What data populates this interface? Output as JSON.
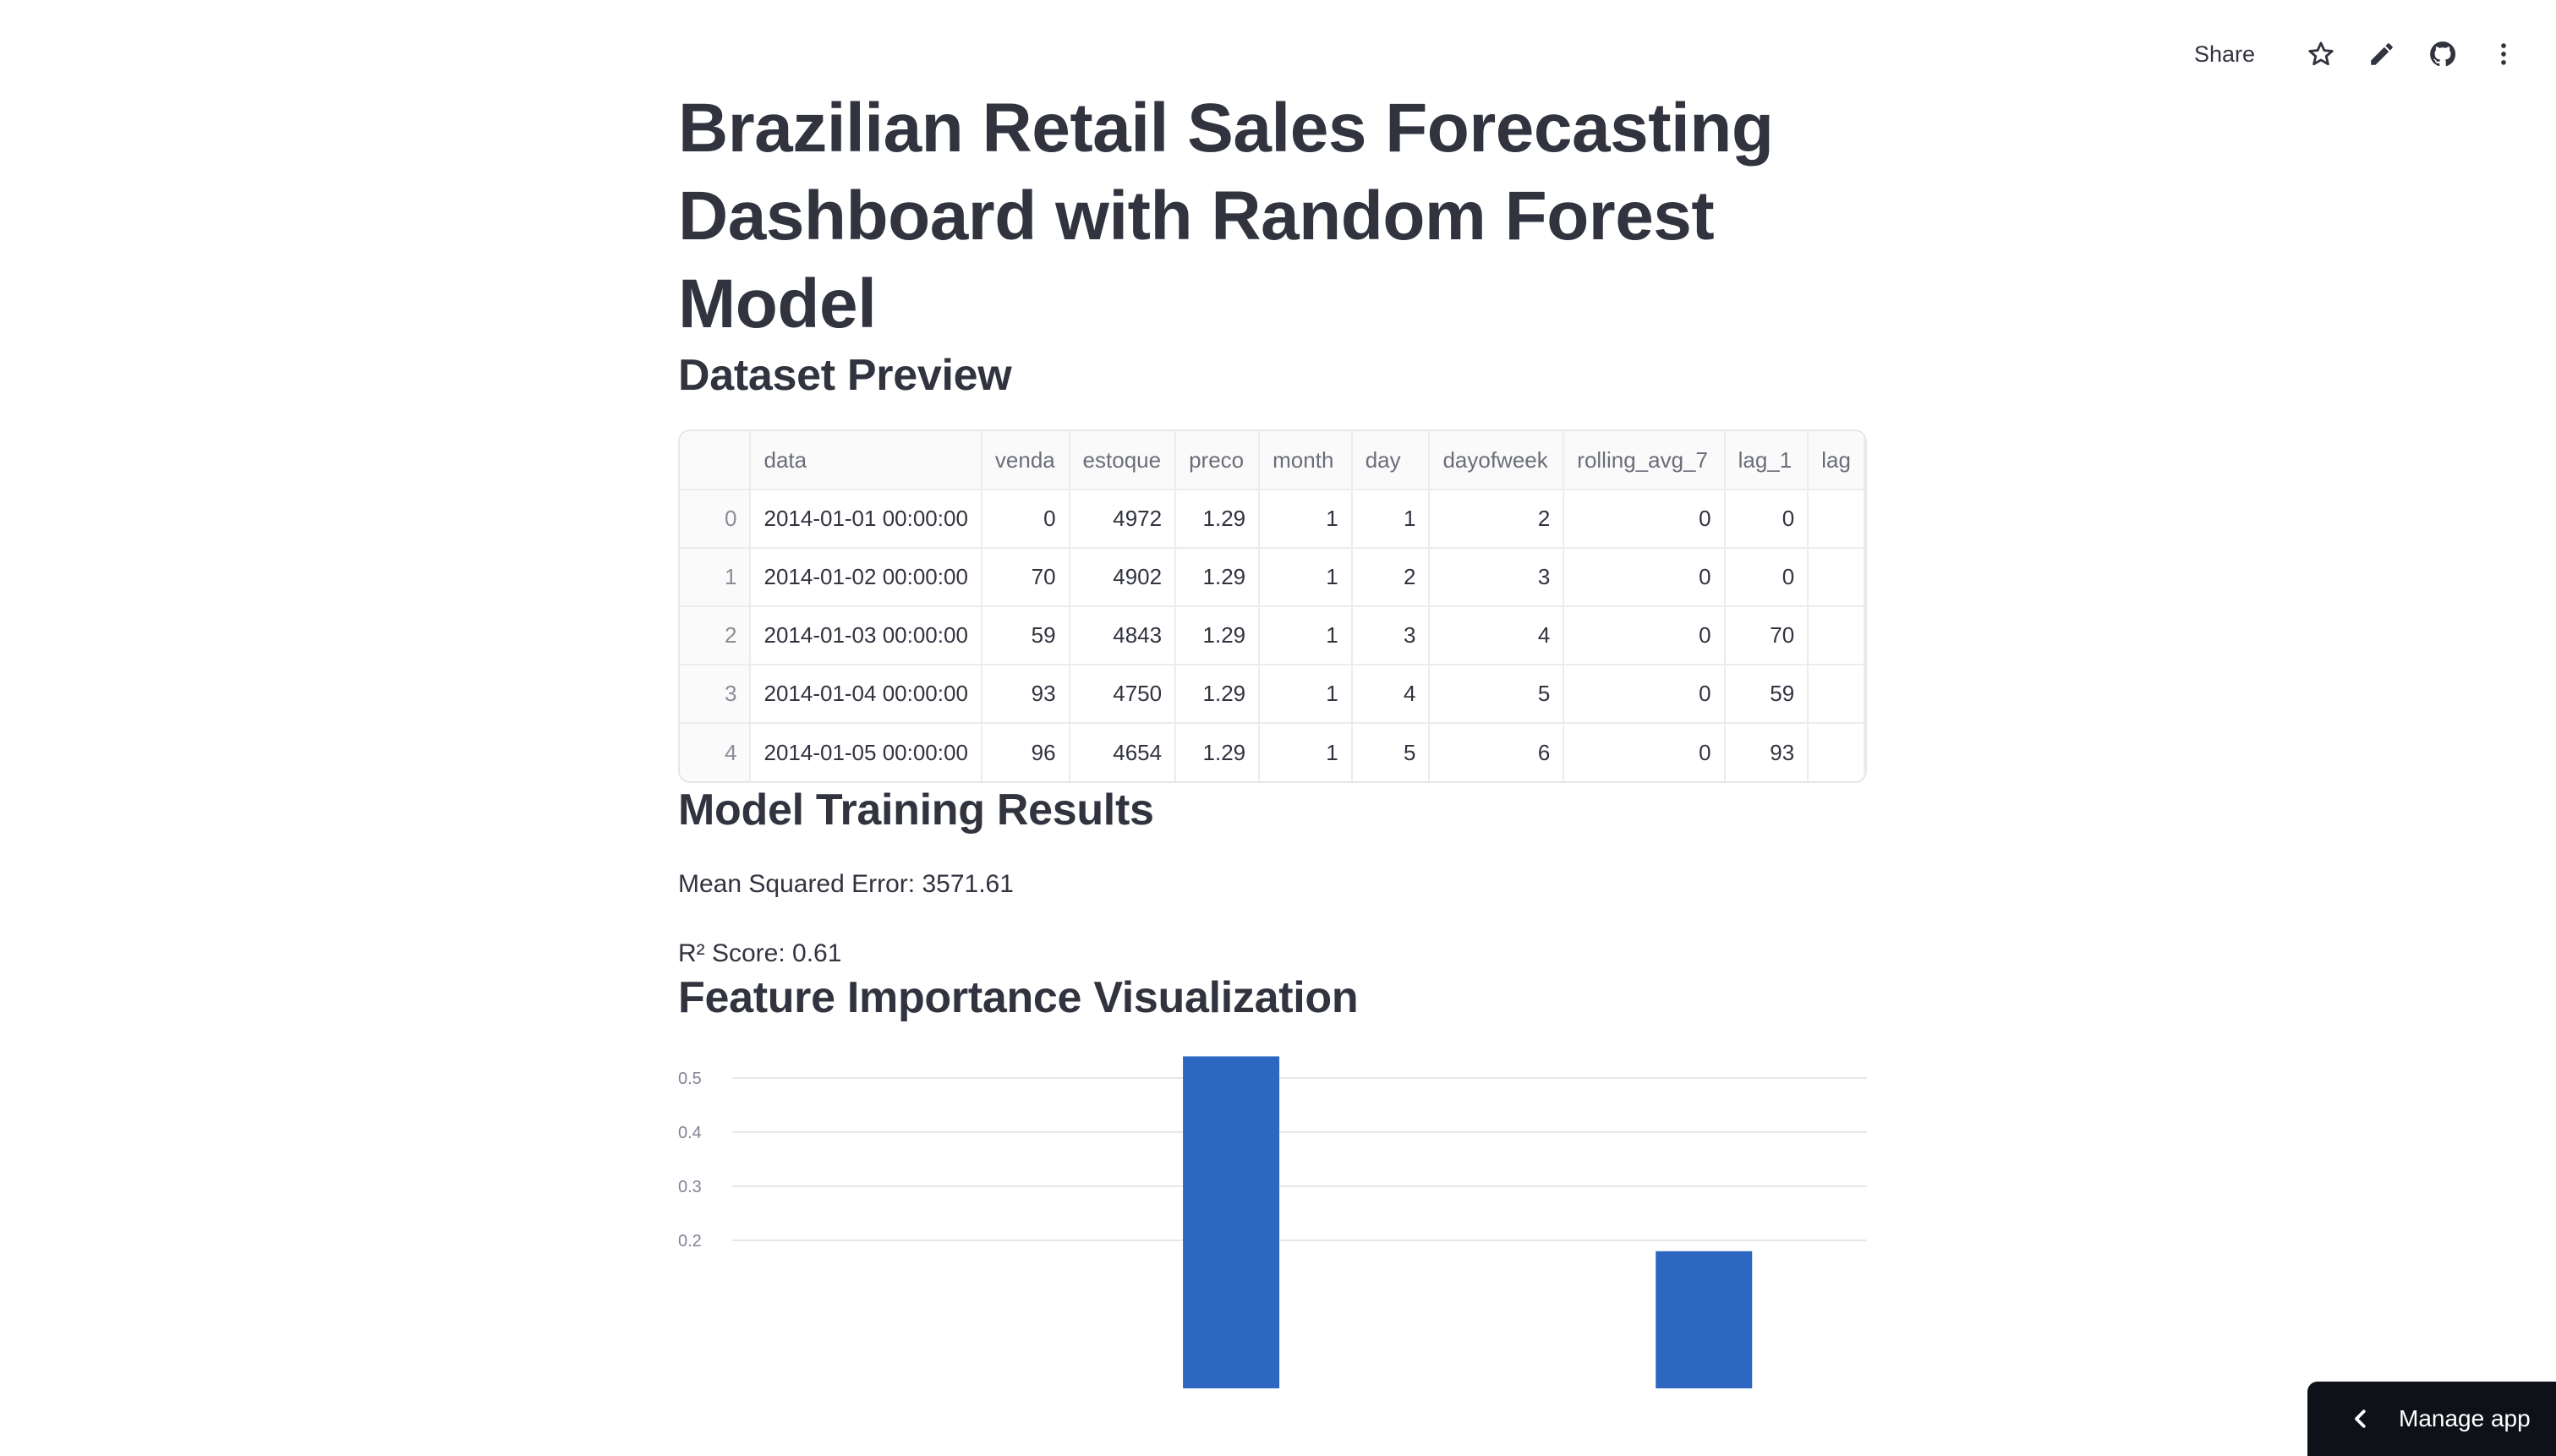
{
  "toolbar": {
    "share_label": "Share",
    "icons": [
      "star-icon",
      "pencil-icon",
      "github-icon",
      "more-vertical-icon"
    ]
  },
  "page": {
    "title": "Brazilian Retail Sales Forecasting Dashboard with Random Forest Model"
  },
  "dataset_preview": {
    "heading": "Dataset Preview",
    "columns": [
      "",
      "data",
      "venda",
      "estoque",
      "preco",
      "month",
      "day",
      "dayofweek",
      "rolling_avg_7",
      "lag_1",
      "lag"
    ],
    "rows": [
      [
        "0",
        "2014-01-01 00:00:00",
        "0",
        "4972",
        "1.29",
        "1",
        "1",
        "2",
        "0",
        "0",
        ""
      ],
      [
        "1",
        "2014-01-02 00:00:00",
        "70",
        "4902",
        "1.29",
        "1",
        "2",
        "3",
        "0",
        "0",
        ""
      ],
      [
        "2",
        "2014-01-03 00:00:00",
        "59",
        "4843",
        "1.29",
        "1",
        "3",
        "4",
        "0",
        "70",
        ""
      ],
      [
        "3",
        "2014-01-04 00:00:00",
        "93",
        "4750",
        "1.29",
        "1",
        "4",
        "5",
        "0",
        "59",
        ""
      ],
      [
        "4",
        "2014-01-05 00:00:00",
        "96",
        "4654",
        "1.29",
        "1",
        "5",
        "6",
        "0",
        "93",
        ""
      ]
    ]
  },
  "model_results": {
    "heading": "Model Training Results",
    "mse_text": "Mean Squared Error: 3571.61",
    "r2_text": "R² Score: 0.61"
  },
  "feature_importance": {
    "heading": "Feature Importance Visualization"
  },
  "chart_data": {
    "type": "bar",
    "title": "",
    "xlabel": "",
    "ylabel": "",
    "ylim_visible": [
      0.15,
      0.56
    ],
    "y_ticks": [
      0.2,
      0.3,
      0.4,
      0.5
    ],
    "y_tick_labels": [
      "0.2",
      "0.3",
      "0.4",
      "0.5"
    ],
    "grid": true,
    "bar_color": "#2e67c1",
    "bars": [
      {
        "slot": 6,
        "value": 0.54
      },
      {
        "slot": 11,
        "value": 0.18
      }
    ],
    "slots_total": 12
  },
  "manage_app": {
    "label": "Manage app"
  },
  "colors": {
    "text": "#31333f",
    "muted": "#6b6e78",
    "border": "#e6e7ea",
    "manage_bg": "#0e1117"
  }
}
